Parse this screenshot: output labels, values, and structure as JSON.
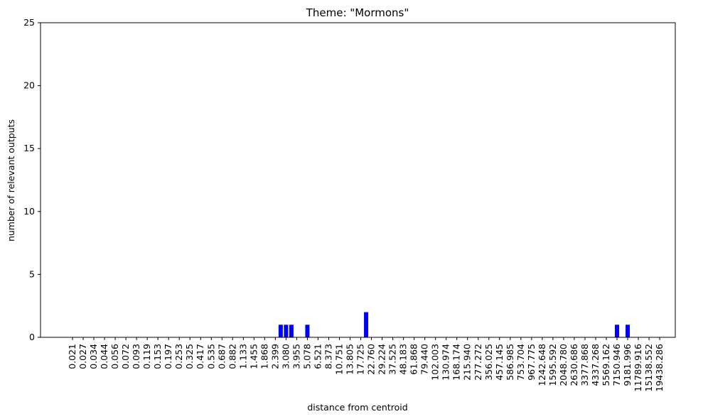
{
  "chart_data": {
    "type": "bar",
    "title": "Theme: \"Mormons\"",
    "x_label": "distance from centroid",
    "y_label": "number of relevant outputs",
    "categories": [
      "0.021",
      null,
      "0.027",
      null,
      "0.034",
      null,
      "0.044",
      null,
      "0.056",
      null,
      "0.072",
      null,
      "0.093",
      null,
      "0.119",
      null,
      "0.153",
      null,
      "0.197",
      null,
      "0.253",
      null,
      "0.325",
      null,
      "0.417",
      null,
      "0.535",
      null,
      "0.687",
      null,
      "0.882",
      null,
      "1.133",
      null,
      "1.455",
      null,
      "1.868",
      null,
      "2.399",
      null,
      "3.080",
      null,
      "3.955",
      null,
      "5.078",
      null,
      "6.521",
      null,
      "8.373",
      null,
      "10.751",
      null,
      "13.805",
      null,
      "17.725",
      null,
      "22.760",
      null,
      "29.224",
      null,
      "37.525",
      null,
      "48.183",
      null,
      "61.868",
      null,
      "79.440",
      null,
      "102.003",
      null,
      "130.974",
      null,
      "168.174",
      null,
      "215.940",
      null,
      "277.272",
      null,
      "356.025",
      null,
      "457.145",
      null,
      "586.985",
      null,
      "753.704",
      null,
      "967.775",
      null,
      "1242.648",
      null,
      "1595.592",
      null,
      "2048.780",
      null,
      "2630.686",
      null,
      "3377.868",
      null,
      "4337.268",
      null,
      "5569.162",
      null,
      "7150.946",
      null,
      "9181.996",
      null,
      "11789.916",
      null,
      "15138.552",
      null,
      "19438.286",
      null
    ],
    "values": [
      0,
      0,
      0,
      0,
      0,
      0,
      0,
      0,
      0,
      0,
      0,
      0,
      0,
      0,
      0,
      0,
      0,
      0,
      0,
      0,
      0,
      0,
      0,
      0,
      0,
      0,
      0,
      0,
      0,
      0,
      0,
      0,
      0,
      0,
      0,
      0,
      0,
      0,
      0,
      1,
      1,
      1,
      0,
      0,
      1,
      0,
      0,
      0,
      0,
      0,
      0,
      0,
      0,
      0,
      0,
      2,
      0,
      0,
      0,
      0,
      0,
      0,
      0,
      0,
      0,
      0,
      0,
      0,
      0,
      0,
      0,
      0,
      0,
      0,
      0,
      0,
      0,
      0,
      0,
      0,
      0,
      0,
      0,
      0,
      0,
      0,
      0,
      0,
      0,
      0,
      0,
      0,
      0,
      0,
      0,
      0,
      0,
      0,
      0,
      0,
      0,
      0,
      1,
      0,
      1,
      0,
      0,
      0,
      0,
      0,
      0,
      0
    ],
    "color": "#0000ff",
    "ylim": [
      0,
      25
    ],
    "yticks": [
      0,
      5,
      10,
      15,
      20,
      25
    ]
  }
}
